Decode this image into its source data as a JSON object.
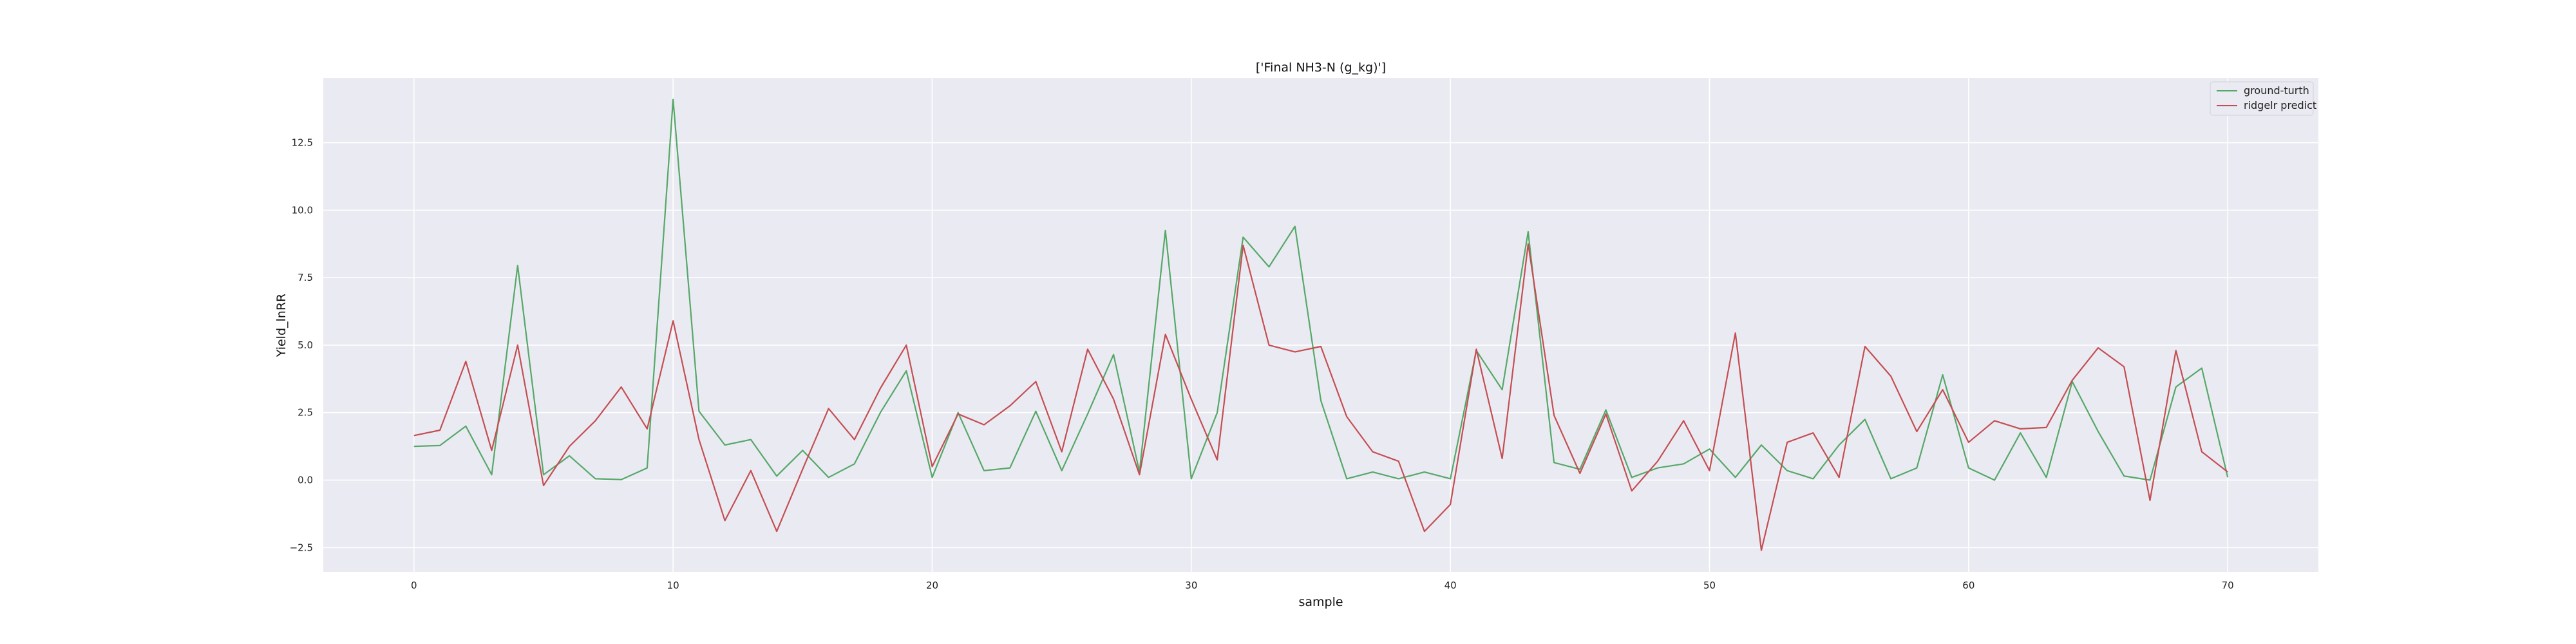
{
  "chart_data": {
    "type": "line",
    "title": "['Final NH3-N (g_kg)']",
    "xlabel": "sample",
    "ylabel": "Yield_lnRR",
    "xlim": [
      -3.5,
      73.5
    ],
    "ylim": [
      -3.4,
      14.9
    ],
    "xticks": [
      0,
      10,
      20,
      30,
      40,
      50,
      60,
      70
    ],
    "yticks": [
      -2.5,
      0.0,
      2.5,
      5.0,
      7.5,
      10.0,
      12.5
    ],
    "ytick_labels": [
      "−2.5",
      "0.0",
      "2.5",
      "5.0",
      "7.5",
      "10.0",
      "12.5"
    ],
    "grid": true,
    "legend_position": "top-right",
    "x": [
      0,
      1,
      2,
      3,
      4,
      5,
      6,
      7,
      8,
      9,
      10,
      11,
      12,
      13,
      14,
      15,
      16,
      17,
      18,
      19,
      20,
      21,
      22,
      23,
      24,
      25,
      26,
      27,
      28,
      29,
      30,
      31,
      32,
      33,
      34,
      35,
      36,
      37,
      38,
      39,
      40,
      41,
      42,
      43,
      44,
      45,
      46,
      47,
      48,
      49,
      50,
      51,
      52,
      53,
      54,
      55,
      56,
      57,
      58,
      59,
      60,
      61,
      62,
      63,
      64,
      65,
      66,
      67,
      68,
      69,
      70
    ],
    "series": [
      {
        "name": "ground-turth",
        "color": "#55a868",
        "values": [
          1.25,
          1.28,
          2.0,
          0.2,
          7.95,
          0.2,
          0.9,
          0.05,
          0.02,
          0.45,
          14.1,
          2.55,
          1.3,
          1.5,
          0.15,
          1.1,
          0.1,
          0.6,
          2.5,
          4.05,
          0.1,
          2.5,
          0.35,
          0.45,
          2.55,
          0.35,
          2.45,
          4.65,
          0.3,
          9.25,
          0.05,
          2.5,
          9.0,
          7.9,
          9.4,
          2.95,
          0.05,
          0.3,
          0.05,
          0.3,
          0.05,
          4.8,
          3.35,
          9.2,
          0.65,
          0.4,
          2.6,
          0.1,
          0.45,
          0.6,
          1.15,
          0.1,
          1.3,
          0.35,
          0.05,
          1.3,
          2.25,
          0.05,
          0.45,
          3.9,
          0.45,
          0.0,
          1.75,
          0.1,
          3.65,
          1.8,
          0.15,
          0.0,
          3.45,
          4.15,
          0.1
        ]
      },
      {
        "name": "ridgelr predict",
        "color": "#c44e52",
        "values": [
          1.65,
          1.85,
          4.4,
          1.1,
          5.0,
          -0.2,
          1.25,
          2.2,
          3.45,
          1.9,
          5.9,
          1.5,
          -1.5,
          0.35,
          -1.9,
          0.4,
          2.65,
          1.5,
          3.4,
          5.0,
          0.5,
          2.45,
          2.05,
          2.75,
          3.65,
          1.05,
          4.85,
          3.0,
          0.2,
          5.4,
          3.0,
          0.75,
          8.7,
          5.0,
          4.75,
          4.95,
          2.35,
          1.05,
          0.7,
          -1.9,
          -0.9,
          4.85,
          0.8,
          8.75,
          2.4,
          0.25,
          2.45,
          -0.4,
          0.7,
          2.2,
          0.35,
          5.45,
          -2.6,
          1.4,
          1.75,
          0.1,
          4.95,
          3.85,
          1.8,
          3.35,
          1.4,
          2.2,
          1.9,
          1.95,
          3.7,
          4.9,
          4.2,
          -0.75,
          4.8,
          1.05,
          0.3
        ]
      }
    ]
  }
}
